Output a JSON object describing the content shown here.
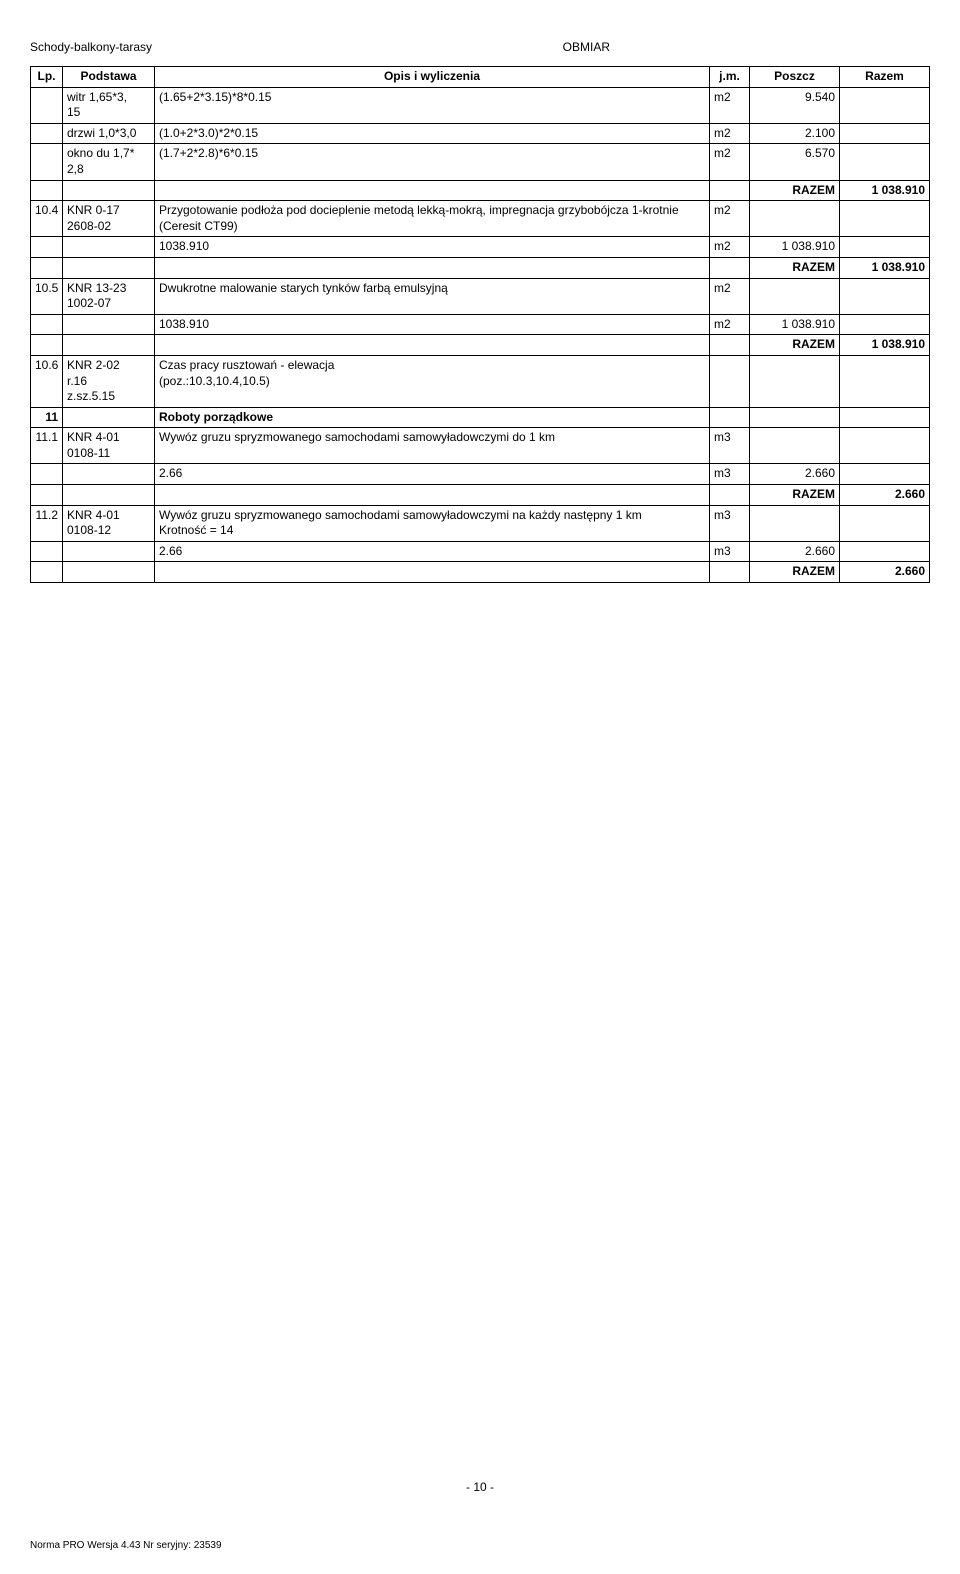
{
  "header": {
    "left": "Schody-balkony-tarasy",
    "right": "OBMIAR"
  },
  "columns": [
    "Lp.",
    "Podstawa",
    "Opis i wyliczenia",
    "j.m.",
    "Poszcz",
    "Razem"
  ],
  "rows": [
    {
      "lp": "",
      "pod": "witr 1,65*3,\n15",
      "opis": "(1.65+2*3.15)*8*0.15",
      "jm": "m2",
      "poszcz": "9.540",
      "razem": ""
    },
    {
      "lp": "",
      "pod": "drzwi 1,0*3,0",
      "opis": "(1.0+2*3.0)*2*0.15",
      "jm": "m2",
      "poszcz": "2.100",
      "razem": ""
    },
    {
      "lp": "",
      "pod": "okno du 1,7*\n2,8",
      "opis": "(1.7+2*2.8)*6*0.15",
      "jm": "m2",
      "poszcz": "6.570",
      "razem": ""
    },
    {
      "lp": "",
      "pod": "",
      "opis": "",
      "jm": "",
      "poszcz": "RAZEM",
      "razem": "1 038.910",
      "bold_razem": true
    },
    {
      "lp": "10.4",
      "pod": "KNR 0-17\n2608-02",
      "opis": "Przygotowanie podłoża pod docieplenie metodą lekką-mokrą, impregnacja grzybobójcza 1-krotnie (Ceresit CT99)",
      "jm": "m2",
      "poszcz": "",
      "razem": ""
    },
    {
      "lp": "",
      "pod": "",
      "opis": "1038.910",
      "jm": "m2",
      "poszcz": "1 038.910",
      "razem": ""
    },
    {
      "lp": "",
      "pod": "",
      "opis": "",
      "jm": "",
      "poszcz": "RAZEM",
      "razem": "1 038.910",
      "bold_razem": true
    },
    {
      "lp": "10.5",
      "pod": "KNR 13-23\n1002-07",
      "opis": "Dwukrotne malowanie starych tynków farbą emulsyjną",
      "jm": "m2",
      "poszcz": "",
      "razem": ""
    },
    {
      "lp": "",
      "pod": "",
      "opis": "1038.910",
      "jm": "m2",
      "poszcz": "1 038.910",
      "razem": ""
    },
    {
      "lp": "",
      "pod": "",
      "opis": "",
      "jm": "",
      "poszcz": "RAZEM",
      "razem": "1 038.910",
      "bold_razem": true
    },
    {
      "lp": "10.6",
      "pod": "KNR 2-02\nr.16\nz.sz.5.15",
      "opis": "Czas pracy rusztowań - elewacja\n(poz.:10.3,10.4,10.5)",
      "jm": "",
      "poszcz": "",
      "razem": ""
    },
    {
      "lp": "11",
      "pod": "",
      "opis": "Roboty porządkowe",
      "jm": "",
      "poszcz": "",
      "razem": "",
      "bold_row": true
    },
    {
      "lp": "11.1",
      "pod": "KNR 4-01\n0108-11",
      "opis": "Wywóz gruzu spryzmowanego samochodami samowyładowczymi do 1 km",
      "jm": "m3",
      "poszcz": "",
      "razem": ""
    },
    {
      "lp": "",
      "pod": "",
      "opis": "2.66",
      "jm": "m3",
      "poszcz": "2.660",
      "razem": ""
    },
    {
      "lp": "",
      "pod": "",
      "opis": "",
      "jm": "",
      "poszcz": "RAZEM",
      "razem": "2.660",
      "bold_razem": true
    },
    {
      "lp": "11.2",
      "pod": "KNR 4-01\n0108-12",
      "opis": "Wywóz gruzu spryzmowanego samochodami samowyładowczymi na każdy następny 1 km\nKrotność = 14",
      "jm": "m3",
      "poszcz": "",
      "razem": ""
    },
    {
      "lp": "",
      "pod": "",
      "opis": "2.66",
      "jm": "m3",
      "poszcz": "2.660",
      "razem": ""
    },
    {
      "lp": "",
      "pod": "",
      "opis": "",
      "jm": "",
      "poszcz": "RAZEM",
      "razem": "2.660",
      "bold_razem": true
    }
  ],
  "page_number": "- 10 -",
  "footer": "Norma PRO Wersja 4.43 Nr seryjny: 23539"
}
